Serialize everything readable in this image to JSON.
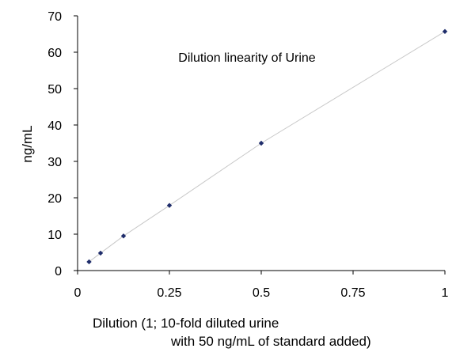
{
  "chart_data": {
    "type": "scatter",
    "title": "Dilution linearity of Urine",
    "xlabel_lines": [
      "Dilution (1; 10-fold diluted urine",
      "with 50 ng/mL of standard added)"
    ],
    "ylabel": "ng/mL",
    "xlim": [
      0,
      1
    ],
    "ylim": [
      0,
      70
    ],
    "xticks": [
      0,
      0.25,
      0.5,
      0.75,
      1
    ],
    "xtick_labels": [
      "0",
      "0.25",
      "0.5",
      "0.75",
      "1"
    ],
    "yticks": [
      0,
      10,
      20,
      30,
      40,
      50,
      60,
      70
    ],
    "ytick_labels": [
      "0",
      "10",
      "20",
      "30",
      "40",
      "50",
      "60",
      "70"
    ],
    "grid": false,
    "series": [
      {
        "marker": "diamond",
        "color": "#1f2d6b",
        "line_color": "#c8c8c8",
        "x": [
          0.03125,
          0.0625,
          0.125,
          0.25,
          0.5,
          1
        ],
        "y": [
          2.4,
          4.8,
          9.5,
          17.9,
          35.0,
          65.7
        ]
      }
    ]
  }
}
